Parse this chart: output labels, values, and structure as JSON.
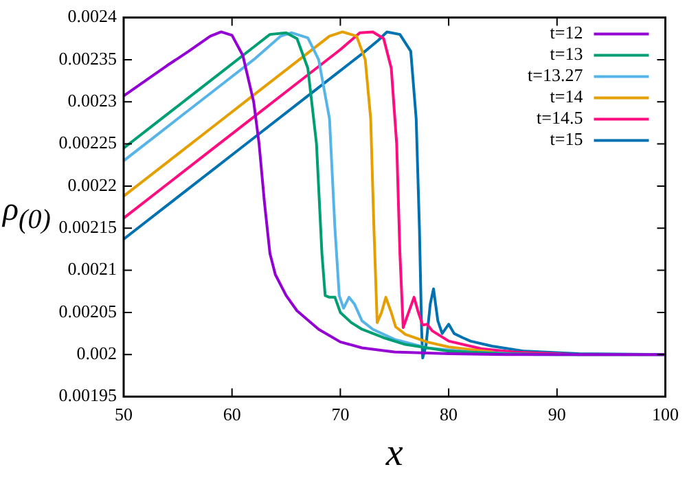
{
  "chart_data": {
    "type": "line",
    "xlabel": "x",
    "ylabel": "ρ$_{(0)}$",
    "xlim": [
      50,
      100
    ],
    "xticks": [
      50,
      60,
      70,
      80,
      90,
      100
    ],
    "ylim": [
      0.00195,
      0.0024
    ],
    "yticks": [
      0.00195,
      0.002,
      0.00205,
      0.0021,
      0.00215,
      0.0022,
      0.00225,
      0.0023,
      0.00235,
      0.0024
    ],
    "grid": false,
    "legend": "top right",
    "marker": "none",
    "line_style": "solid",
    "series": [
      {
        "name": "t=12",
        "color": "#9400d3",
        "x": [
          50,
          52,
          54,
          56,
          58,
          59,
          60,
          61,
          62,
          62.5,
          63,
          63.5,
          64,
          65,
          66,
          68,
          70,
          72,
          75,
          80,
          85,
          100
        ],
        "values": [
          0.002307,
          0.002325,
          0.002343,
          0.00236,
          0.002378,
          0.002383,
          0.002379,
          0.002355,
          0.0023,
          0.00225,
          0.00218,
          0.00212,
          0.002095,
          0.00207,
          0.002052,
          0.00203,
          0.002015,
          0.002008,
          0.002003,
          0.002001,
          0.002,
          0.002
        ]
      },
      {
        "name": "t=13",
        "color": "#009e73",
        "x": [
          50,
          53,
          56,
          59,
          62,
          63.5,
          65,
          66,
          67,
          67.8,
          68.3,
          68.6,
          69,
          69.5,
          70,
          71,
          72,
          74,
          76,
          80,
          85,
          90,
          100
        ],
        "values": [
          0.002245,
          0.002275,
          0.002305,
          0.002335,
          0.002365,
          0.00238,
          0.002382,
          0.002375,
          0.00234,
          0.00225,
          0.00212,
          0.00207,
          0.002068,
          0.002068,
          0.00205,
          0.002038,
          0.00203,
          0.00202,
          0.002012,
          0.002004,
          0.002001,
          0.002,
          0.002
        ]
      },
      {
        "name": "t=13.27",
        "color": "#56b4e9",
        "x": [
          50,
          53,
          56,
          59,
          62,
          64.5,
          65.5,
          67,
          68,
          69,
          69.5,
          69.9,
          70.3,
          70.8,
          71.3,
          72,
          73,
          75,
          78,
          82,
          88,
          100
        ],
        "values": [
          0.00223,
          0.00226,
          0.00229,
          0.00232,
          0.00235,
          0.002378,
          0.002382,
          0.002376,
          0.00235,
          0.00228,
          0.00215,
          0.00207,
          0.002055,
          0.002068,
          0.00206,
          0.00204,
          0.00203,
          0.002018,
          0.002008,
          0.002003,
          0.002,
          0.002
        ]
      },
      {
        "name": "t=14",
        "color": "#e69f00",
        "x": [
          50,
          54,
          58,
          62,
          66,
          69,
          70.2,
          71.5,
          72.3,
          72.8,
          73.1,
          73.4,
          73.8,
          74.2,
          74.7,
          75.1,
          76,
          78,
          80,
          84
        ],
        "values": [
          0.002188,
          0.002228,
          0.002268,
          0.002308,
          0.002348,
          0.002378,
          0.002383,
          0.002378,
          0.00235,
          0.00228,
          0.00215,
          0.002038,
          0.00205,
          0.002068,
          0.00205,
          0.002033,
          0.002024,
          0.002015,
          0.002009,
          0.002003
        ]
      },
      {
        "name": "t=14.5",
        "color": "#ff0c80",
        "x": [
          50,
          54,
          58,
          62,
          66,
          70,
          71.8,
          73,
          74,
          74.7,
          75.2,
          75.5,
          75.8,
          76.3,
          76.8,
          77.2,
          77.6,
          78,
          78.5,
          80,
          83,
          86,
          92,
          100
        ],
        "values": [
          0.002162,
          0.002202,
          0.002242,
          0.002282,
          0.002322,
          0.002362,
          0.002382,
          0.002383,
          0.002375,
          0.00234,
          0.00225,
          0.00212,
          0.002032,
          0.00205,
          0.002068,
          0.00205,
          0.002035,
          0.002036,
          0.002028,
          0.002016,
          0.002007,
          0.002003,
          0.002,
          0.002
        ]
      },
      {
        "name": "t=15",
        "color": "#0072b2",
        "x": [
          50,
          54,
          58,
          62,
          66,
          70,
          72,
          73.5,
          74.3,
          75.5,
          76.5,
          77,
          77.3,
          77.5,
          77.6,
          77.9,
          78.3,
          78.6,
          79,
          79.4,
          80,
          80.5,
          81.3,
          82,
          84,
          87,
          92,
          100
        ],
        "values": [
          0.002137,
          0.002177,
          0.002217,
          0.002257,
          0.002297,
          0.002337,
          0.002357,
          0.002373,
          0.002383,
          0.00238,
          0.00236,
          0.00228,
          0.00215,
          0.00203,
          0.001996,
          0.00201,
          0.00206,
          0.002078,
          0.00204,
          0.002025,
          0.002036,
          0.002025,
          0.00202,
          0.002016,
          0.00201,
          0.002004,
          0.002001,
          0.002
        ]
      }
    ]
  }
}
